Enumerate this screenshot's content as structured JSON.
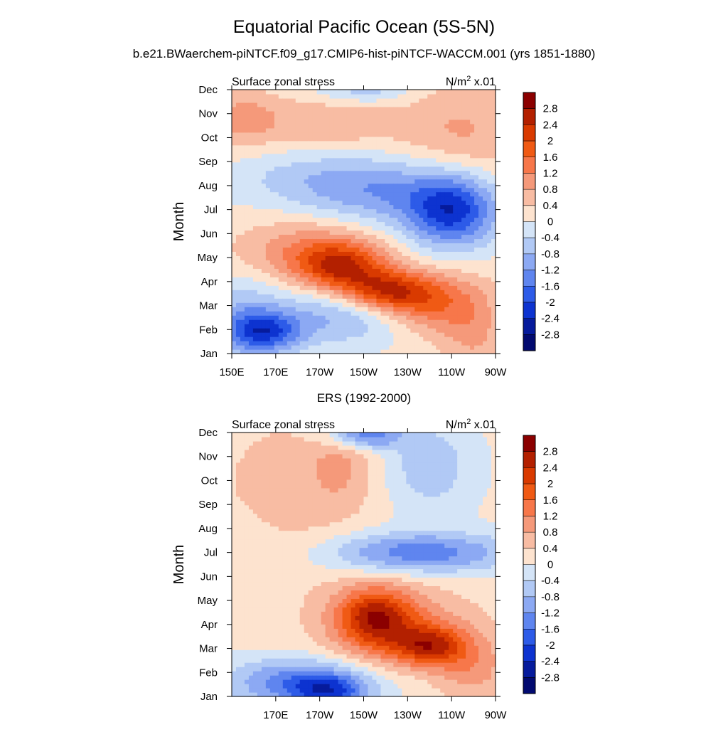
{
  "figure": {
    "title": "Equatorial Pacific Ocean (5S-5N)",
    "subtitle": "b.e21.BWaerchem-piNTCF.f09_g17.CMIP6-hist-piNTCF-WACCM.001 (yrs 1851-1880)"
  },
  "colorbar": {
    "labels": [
      "2.8",
      "2.4",
      "2",
      "1.6",
      "1.2",
      "0.8",
      "0.4",
      "0",
      "-0.4",
      "-0.8",
      "-1.2",
      "-1.6",
      "-2",
      "-2.4",
      "-2.8"
    ],
    "colors": [
      "#8b0000",
      "#b32000",
      "#d93a00",
      "#f05a14",
      "#f7774a",
      "#f5997a",
      "#f8bca3",
      "#fde3cf",
      "#d4e4f7",
      "#b1c9f5",
      "#8ca9f3",
      "#5f85ef",
      "#2d5be8",
      "#0d33d0",
      "#061b9c",
      "#020a70"
    ]
  },
  "chart_data": [
    {
      "type": "heatmap",
      "title": "Surface zonal stress",
      "units": "N/m",
      "units_sup": "2",
      "units_suffix": " x.01",
      "ylabel": "Month",
      "xlabel": "",
      "x_ticks": [
        "150E",
        "170E",
        "170W",
        "150W",
        "130W",
        "110W",
        "90W"
      ],
      "x_lon": [
        150,
        170,
        190,
        210,
        230,
        250,
        270
      ],
      "y_ticks": [
        "Jan",
        "Feb",
        "Mar",
        "Apr",
        "May",
        "Jun",
        "Jul",
        "Aug",
        "Sep",
        "Oct",
        "Nov",
        "Dec"
      ],
      "xlim": [
        150,
        270
      ],
      "ylim": [
        1,
        12
      ],
      "features": [
        {
          "lon": 165,
          "month": 1.9,
          "value": -1.8,
          "slon": 12,
          "smon": 0.6
        },
        {
          "lon": 200,
          "month": 2.6,
          "value": -1.0,
          "slon": 25,
          "smon": 0.9
        },
        {
          "lon": 155,
          "month": 2.5,
          "value": -0.8,
          "slon": 12,
          "smon": 1.2
        },
        {
          "lon": 200,
          "month": 4.6,
          "value": 1.9,
          "slon": 14,
          "smon": 0.7
        },
        {
          "lon": 220,
          "month": 3.6,
          "value": 2.0,
          "slon": 14,
          "smon": 0.6
        },
        {
          "lon": 240,
          "month": 3.1,
          "value": 1.4,
          "slon": 15,
          "smon": 0.9
        },
        {
          "lon": 185,
          "month": 5.3,
          "value": 1.0,
          "slon": 22,
          "smon": 0.9
        },
        {
          "lon": 260,
          "month": 2.0,
          "value": 0.7,
          "slon": 10,
          "smon": 1.3
        },
        {
          "lon": 250,
          "month": 7.0,
          "value": -2.4,
          "slon": 15,
          "smon": 1.1
        },
        {
          "lon": 215,
          "month": 7.8,
          "value": -1.1,
          "slon": 22,
          "smon": 1.0
        },
        {
          "lon": 180,
          "month": 8.3,
          "value": -0.6,
          "slon": 25,
          "smon": 0.9
        },
        {
          "lon": 155,
          "month": 10.8,
          "value": 0.8,
          "slon": 12,
          "smon": 0.8
        },
        {
          "lon": 195,
          "month": 10.6,
          "value": 0.6,
          "slon": 22,
          "smon": 0.8
        },
        {
          "lon": 255,
          "month": 10.2,
          "value": 0.7,
          "slon": 20,
          "smon": 1.5
        },
        {
          "lon": 210,
          "month": 12.0,
          "value": -0.8,
          "slon": 15,
          "smon": 0.4
        }
      ],
      "base": 0.15
    },
    {
      "type": "heatmap",
      "caption": "ERS (1992-2000)",
      "title": "Surface zonal stress",
      "units": "N/m",
      "units_sup": "2",
      "units_suffix": " x.01",
      "ylabel": "Month",
      "xlabel": "",
      "x_ticks": [
        "170E",
        "170W",
        "150W",
        "130W",
        "110W",
        "90W"
      ],
      "x_lon": [
        170,
        190,
        210,
        230,
        250,
        270
      ],
      "y_ticks": [
        "Jan",
        "Feb",
        "Mar",
        "Apr",
        "May",
        "Jun",
        "Jul",
        "Aug",
        "Sep",
        "Oct",
        "Nov",
        "Dec"
      ],
      "xlim": [
        150,
        270
      ],
      "ylim": [
        1,
        12
      ],
      "features": [
        {
          "lon": 180,
          "month": 1.6,
          "value": -1.6,
          "slon": 22,
          "smon": 0.7
        },
        {
          "lon": 195,
          "month": 1.2,
          "value": -1.5,
          "slon": 12,
          "smon": 0.5
        },
        {
          "lon": 215,
          "month": 4.3,
          "value": 1.9,
          "slon": 12,
          "smon": 0.9
        },
        {
          "lon": 240,
          "month": 3.1,
          "value": 1.9,
          "slon": 12,
          "smon": 0.6
        },
        {
          "lon": 225,
          "month": 4.0,
          "value": 1.0,
          "slon": 25,
          "smon": 1.2
        },
        {
          "lon": 260,
          "month": 2.1,
          "value": 0.8,
          "slon": 12,
          "smon": 1.0
        },
        {
          "lon": 235,
          "month": 7.0,
          "value": -1.6,
          "slon": 30,
          "smon": 0.6
        },
        {
          "lon": 210,
          "month": 11.9,
          "value": -1.7,
          "slon": 12,
          "smon": 0.4
        },
        {
          "lon": 240,
          "month": 10.6,
          "value": -0.8,
          "slon": 14,
          "smon": 1.3
        },
        {
          "lon": 175,
          "month": 9.5,
          "value": 0.5,
          "slon": 25,
          "smon": 2.5
        },
        {
          "lon": 200,
          "month": 10.8,
          "value": 0.6,
          "slon": 10,
          "smon": 1.3
        },
        {
          "lon": 158,
          "month": 7.2,
          "value": -0.2,
          "slon": 10,
          "smon": 1.2
        }
      ],
      "base": 0.1
    }
  ]
}
